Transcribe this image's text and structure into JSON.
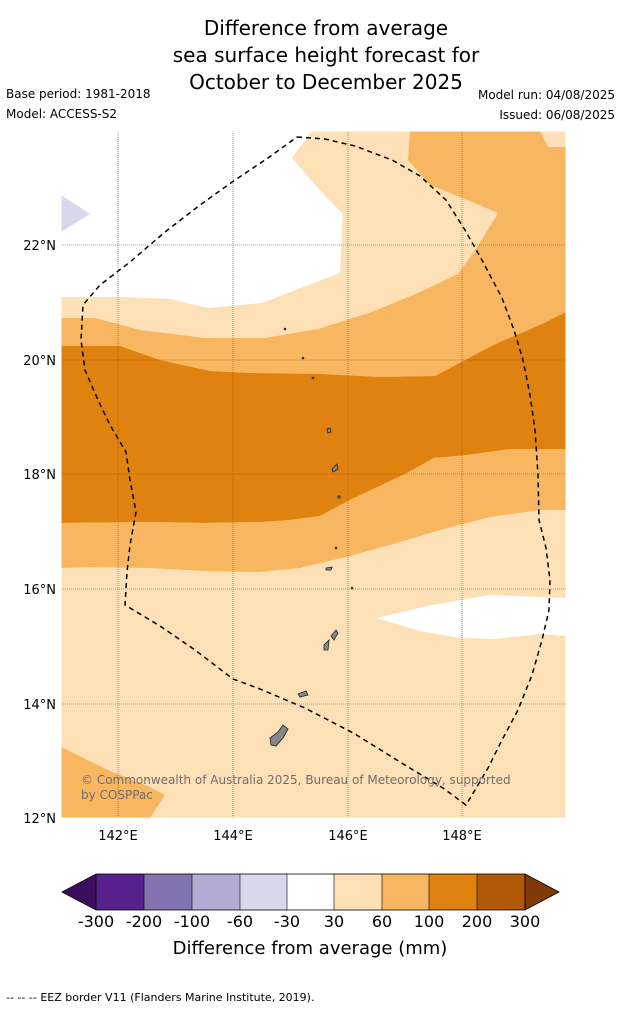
{
  "title": {
    "line1": "Difference from average",
    "line2": "sea surface height forecast for",
    "line3": "October to December 2025"
  },
  "meta": {
    "base_period": "Base period: 1981-2018",
    "model": "Model: ACCESS-S2",
    "model_run": "Model run: 04/08/2025",
    "issued": "Issued: 06/08/2025"
  },
  "map": {
    "lat_ticks": [
      "22°N",
      "20°N",
      "18°N",
      "16°N",
      "14°N",
      "12°N"
    ],
    "lon_ticks": [
      "142°E",
      "144°E",
      "146°E",
      "148°E"
    ],
    "copyright_line1": "© Commonwealth of Australia 2025, Bureau of Meteorology, supported",
    "copyright_line2": "by COSPPac"
  },
  "colorbar": {
    "labels": [
      "-300",
      "-200",
      "-100",
      "-60",
      "-30",
      "30",
      "60",
      "100",
      "200",
      "300"
    ],
    "colors": [
      "#3b0f5e",
      "#56218c",
      "#8573b0",
      "#b3abd3",
      "#d8d8ec",
      "#ffffff",
      "#fde0b6",
      "#f9b661",
      "#e0820f",
      "#b05808",
      "#7f3a06"
    ],
    "title": "Difference from average (mm)"
  },
  "footer": {
    "dash": "-- -- --",
    "text": "EEZ border V11 (Flanders Marine Institute, 2019)."
  }
}
